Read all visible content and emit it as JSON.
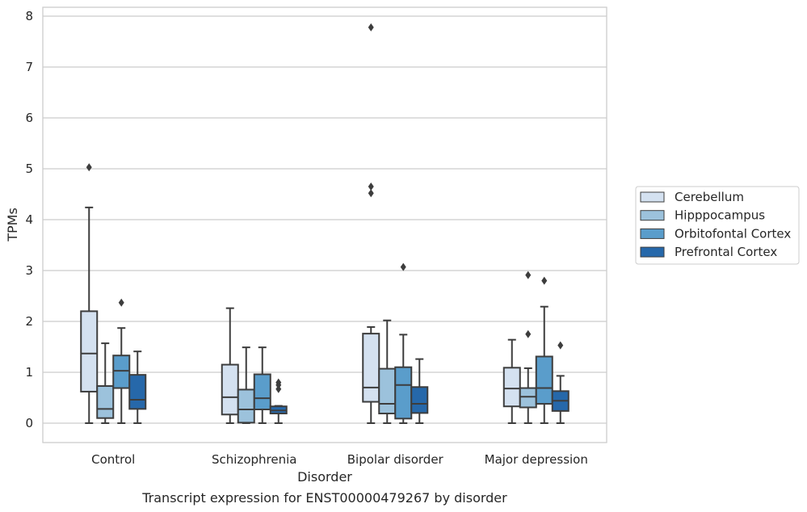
{
  "chart_data": {
    "type": "box",
    "title": "Transcript expression for ENST00000479267 by disorder",
    "xlabel": "Disorder",
    "ylabel": "TPMs",
    "ylim": [
      -0.38,
      8.18
    ],
    "yticks": [
      "0",
      "1",
      "2",
      "3",
      "4",
      "5",
      "6",
      "7",
      "8"
    ],
    "grid": "horizontal",
    "legend_position": "right",
    "categories": [
      "Control",
      "Schizophrenia",
      "Bipolar disorder",
      "Major depression"
    ],
    "series": [
      {
        "name": "Cerebellum",
        "color": "#d4e1f0",
        "boxes": [
          {
            "whislo": 0.0,
            "q1": 0.62,
            "med": 1.37,
            "q3": 2.2,
            "whishi": 4.24,
            "fliers": [
              5.03
            ]
          },
          {
            "whislo": 0.0,
            "q1": 0.17,
            "med": 0.51,
            "q3": 1.15,
            "whishi": 2.26,
            "fliers": []
          },
          {
            "whislo": 0.0,
            "q1": 0.42,
            "med": 0.7,
            "q3": 1.76,
            "whishi": 1.89,
            "fliers": [
              4.52,
              4.65,
              7.78
            ]
          },
          {
            "whislo": 0.0,
            "q1": 0.33,
            "med": 0.68,
            "q3": 1.09,
            "whishi": 1.64,
            "fliers": []
          }
        ]
      },
      {
        "name": "Hipppocampus",
        "color": "#9cc2dc",
        "boxes": [
          {
            "whislo": 0.0,
            "q1": 0.1,
            "med": 0.28,
            "q3": 0.73,
            "whishi": 1.57,
            "fliers": []
          },
          {
            "whislo": 0.0,
            "q1": 0.01,
            "med": 0.27,
            "q3": 0.66,
            "whishi": 1.49,
            "fliers": []
          },
          {
            "whislo": 0.0,
            "q1": 0.19,
            "med": 0.38,
            "q3": 1.07,
            "whishi": 2.02,
            "fliers": []
          },
          {
            "whislo": 0.0,
            "q1": 0.31,
            "med": 0.52,
            "q3": 0.69,
            "whishi": 1.08,
            "fliers": [
              1.75,
              2.91
            ]
          }
        ]
      },
      {
        "name": "Orbitofontal Cortex",
        "color": "#5a9dcb",
        "boxes": [
          {
            "whislo": 0.0,
            "q1": 0.69,
            "med": 1.03,
            "q3": 1.33,
            "whishi": 1.87,
            "fliers": [
              2.37
            ]
          },
          {
            "whislo": 0.0,
            "q1": 0.27,
            "med": 0.49,
            "q3": 0.96,
            "whishi": 1.49,
            "fliers": []
          },
          {
            "whislo": 0.0,
            "q1": 0.09,
            "med": 0.75,
            "q3": 1.1,
            "whishi": 1.74,
            "fliers": [
              3.07
            ]
          },
          {
            "whislo": 0.0,
            "q1": 0.38,
            "med": 0.69,
            "q3": 1.31,
            "whishi": 2.29,
            "fliers": [
              2.8
            ]
          }
        ]
      },
      {
        "name": "Prefrontal Cortex",
        "color": "#2668aa",
        "boxes": [
          {
            "whislo": 0.0,
            "q1": 0.28,
            "med": 0.46,
            "q3": 0.95,
            "whishi": 1.41,
            "fliers": []
          },
          {
            "whislo": 0.0,
            "q1": 0.19,
            "med": 0.25,
            "q3": 0.33,
            "whishi": 0.34,
            "fliers": [
              0.67,
              0.75,
              0.8
            ]
          },
          {
            "whislo": 0.0,
            "q1": 0.2,
            "med": 0.38,
            "q3": 0.71,
            "whishi": 1.26,
            "fliers": []
          },
          {
            "whislo": 0.0,
            "q1": 0.24,
            "med": 0.44,
            "q3": 0.63,
            "whishi": 0.93,
            "fliers": [
              1.53
            ]
          }
        ]
      }
    ]
  }
}
